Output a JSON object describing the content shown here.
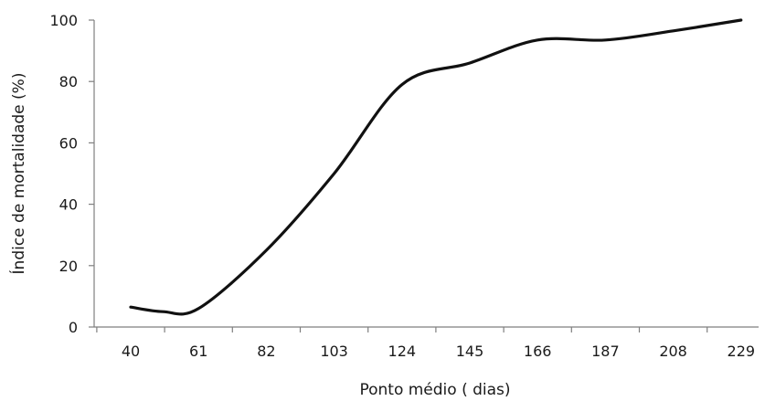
{
  "chart_data": {
    "type": "line",
    "title": "",
    "xlabel": "Ponto médio ( dias)",
    "ylabel": "Índice de mortalidade (%)",
    "categories": [
      "40",
      "61",
      "82",
      "103",
      "124",
      "145",
      "166",
      "187",
      "208",
      "229"
    ],
    "ylim": [
      0,
      100
    ],
    "yticks": [
      "0",
      "20",
      "40",
      "60",
      "80",
      "100"
    ],
    "grid": false,
    "legend": "none",
    "series": [
      {
        "color": "#111111",
        "x": [
          40,
          50,
          61,
          82,
          103,
          124,
          145,
          166,
          187,
          208,
          229
        ],
        "values": [
          6.5,
          5,
          6,
          25,
          50,
          79,
          86,
          93.5,
          93.5,
          96.5,
          100
        ]
      }
    ]
  }
}
